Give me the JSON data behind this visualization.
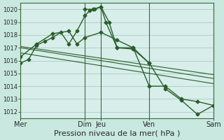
{
  "bg_color": "#c8e8e0",
  "plot_bg": "#d8eeea",
  "grid_color": "#a8ccc8",
  "line_color": "#2a5e2a",
  "vline_color": "#3a6a3a",
  "xlabel": "Pression niveau de la mer( hPa )",
  "xlabel_fontsize": 8,
  "ylim": [
    1011.5,
    1020.5
  ],
  "yticks": [
    1012,
    1013,
    1014,
    1015,
    1016,
    1017,
    1018,
    1019,
    1020
  ],
  "ytick_fontsize": 6,
  "xtick_labels": [
    "Mer",
    "Dim",
    "Jeu",
    "Ven",
    "Sam"
  ],
  "xtick_pos": [
    0,
    4,
    5,
    8,
    12
  ],
  "xtick_fontsize": 7,
  "xlim": [
    0,
    12
  ],
  "vlines": [
    0,
    4,
    5,
    8,
    12
  ],
  "series1_x": [
    0,
    0.5,
    1,
    1.5,
    2,
    2.5,
    3,
    3.5,
    4,
    4.3,
    4.6,
    5.0,
    5.5,
    6,
    7,
    8
  ],
  "series1_y": [
    1015.8,
    1016.1,
    1017.2,
    1017.5,
    1017.8,
    1018.2,
    1017.3,
    1018.3,
    1019.5,
    1019.9,
    1020.0,
    1020.2,
    1019.0,
    1017.0,
    1016.9,
    1015.8
  ],
  "series2_x": [
    4,
    4.5,
    5.0,
    5.3,
    6,
    7,
    8,
    9,
    10,
    11,
    12
  ],
  "series2_y": [
    1020.0,
    1020.0,
    1020.2,
    1019.0,
    1017.0,
    1017.0,
    1014.0,
    1014.0,
    1013.0,
    1012.8,
    1012.5
  ],
  "series3_x": [
    0,
    1,
    2,
    3,
    3.5,
    4,
    5,
    6,
    7,
    8,
    9,
    10,
    11,
    12
  ],
  "series3_y": [
    1016.3,
    1017.3,
    1018.1,
    1018.3,
    1017.3,
    1017.8,
    1018.2,
    1017.6,
    1017.0,
    1015.8,
    1013.8,
    1012.9,
    1011.8,
    1012.5
  ],
  "trend1_x": [
    0,
    12
  ],
  "trend1_y": [
    1017.1,
    1014.9
  ],
  "trend2_x": [
    0,
    12
  ],
  "trend2_y": [
    1017.0,
    1014.6
  ],
  "trend3_x": [
    0,
    12
  ],
  "trend3_y": [
    1016.6,
    1014.2
  ]
}
